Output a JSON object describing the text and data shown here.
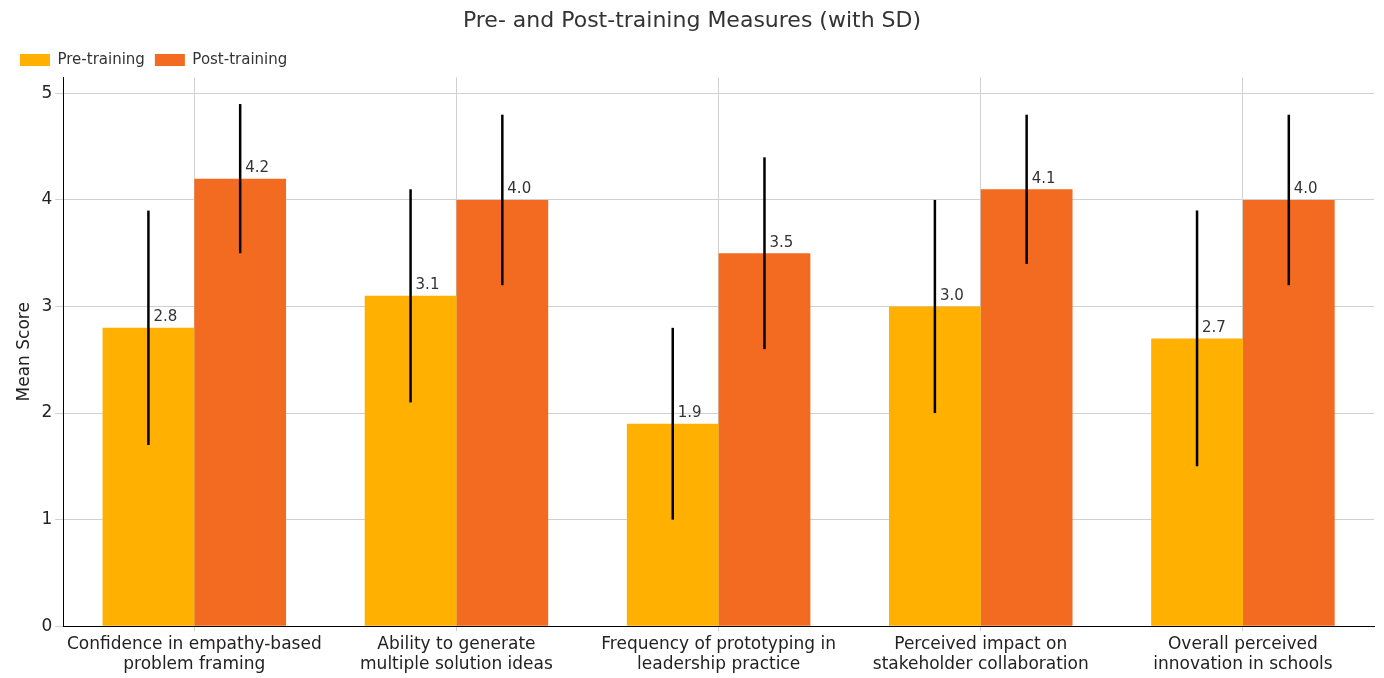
{
  "chart_data": {
    "type": "bar",
    "title": "Pre- and Post-training Measures (with SD)",
    "ylabel": "Mean Score",
    "categories": [
      "Confidence in empathy-based problem framing",
      "Ability to generate multiple solution ideas",
      "Frequency of prototyping in leadership practice",
      "Perceived impact on stakeholder collaboration",
      "Overall perceived innovation in schools"
    ],
    "series": [
      {
        "name": "Pre-training",
        "color": "#ffb000",
        "values": [
          2.8,
          3.1,
          1.9,
          3.0,
          2.7
        ],
        "errors": [
          1.1,
          1.0,
          0.9,
          1.0,
          1.2
        ],
        "value_labels": [
          "2.8",
          "3.1",
          "1.9",
          "3.0",
          "2.7"
        ]
      },
      {
        "name": "Post-training",
        "color": "#f26b21",
        "values": [
          4.2,
          4.0,
          3.5,
          4.1,
          4.0
        ],
        "errors": [
          0.7,
          0.8,
          0.9,
          0.7,
          0.8
        ],
        "value_labels": [
          "4.2",
          "4.0",
          "3.5",
          "4.1",
          "4.0"
        ]
      }
    ],
    "ylim": [
      0,
      5.15
    ],
    "yticks": [
      0,
      1,
      2,
      3,
      4,
      5
    ],
    "grid": true,
    "legend": "top left"
  }
}
